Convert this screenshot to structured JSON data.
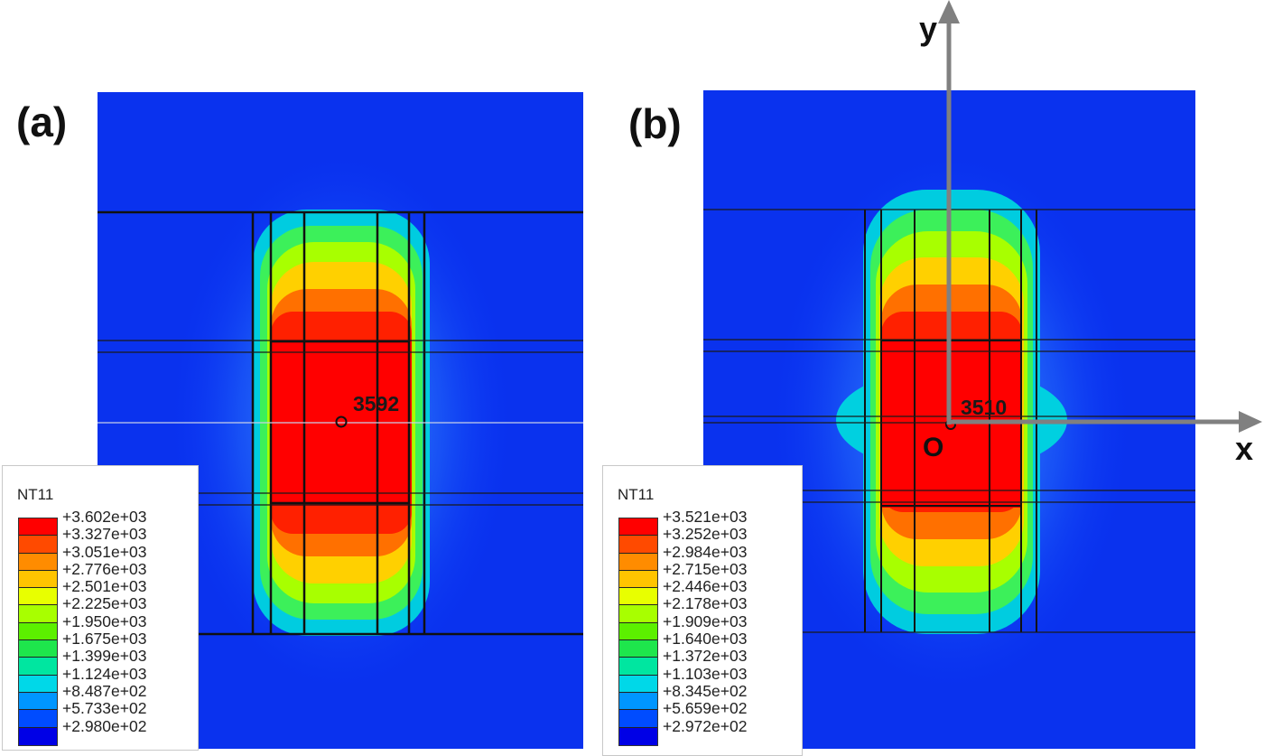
{
  "panels": {
    "a": {
      "label": "(a)",
      "probe_value": "3592",
      "legend": {
        "title": "NT11",
        "values": [
          "+3.602e+03",
          "+3.327e+03",
          "+3.051e+03",
          "+2.776e+03",
          "+2.501e+03",
          "+2.225e+03",
          "+1.950e+03",
          "+1.675e+03",
          "+1.399e+03",
          "+1.124e+03",
          "+8.487e+02",
          "+5.733e+02",
          "+2.980e+02"
        ]
      }
    },
    "b": {
      "label": "(b)",
      "probe_value": "3510",
      "axes": {
        "x_label": "x",
        "y_label": "y",
        "origin_label": "O"
      },
      "legend": {
        "title": "NT11",
        "values": [
          "+3.521e+03",
          "+3.252e+03",
          "+2.984e+03",
          "+2.715e+03",
          "+2.446e+03",
          "+2.178e+03",
          "+1.909e+03",
          "+1.640e+03",
          "+1.372e+03",
          "+1.103e+03",
          "+8.345e+02",
          "+5.659e+02",
          "+2.972e+02"
        ]
      }
    }
  },
  "legend_colors": [
    "#ff0000",
    "#ff4a00",
    "#ff8c00",
    "#ffc400",
    "#e8ff00",
    "#a8ff00",
    "#5cf000",
    "#1ee64c",
    "#00e6a0",
    "#00d8e8",
    "#0096ff",
    "#004cff",
    "#0000e6"
  ]
}
